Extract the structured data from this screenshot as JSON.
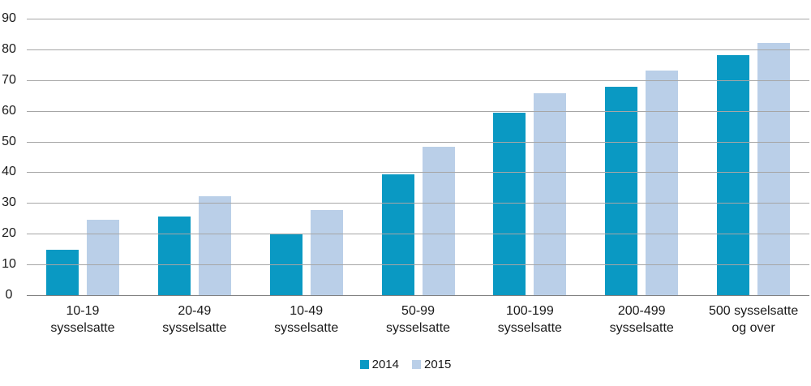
{
  "chart_data": {
    "type": "bar",
    "title": "",
    "xlabel": "",
    "ylabel": "",
    "ylim": [
      0,
      90
    ],
    "ytick_step": 10,
    "grid": true,
    "legend_position": "bottom",
    "categories": [
      "10-19\nsysselsatte",
      "20-49\nsysselsatte",
      "10-49\nsysselsatte",
      "50-99\nsysselsatte",
      "100-199\nsysselsatte",
      "200-499\nsysselsatte",
      "500 sysselsatte\nog over"
    ],
    "series": [
      {
        "name": "2014",
        "color": "#0a99c3",
        "values": [
          14.8,
          25.7,
          20.0,
          39.3,
          59.3,
          67.9,
          78.2
        ]
      },
      {
        "name": "2015",
        "color": "#bacfe8",
        "values": [
          24.5,
          32.3,
          27.7,
          48.4,
          65.6,
          73.0,
          82.2
        ]
      }
    ]
  },
  "colors": {
    "gridline": "#a6a6a6",
    "axis_line": "#808080",
    "text": "#1a1a1a",
    "background": "#ffffff"
  }
}
